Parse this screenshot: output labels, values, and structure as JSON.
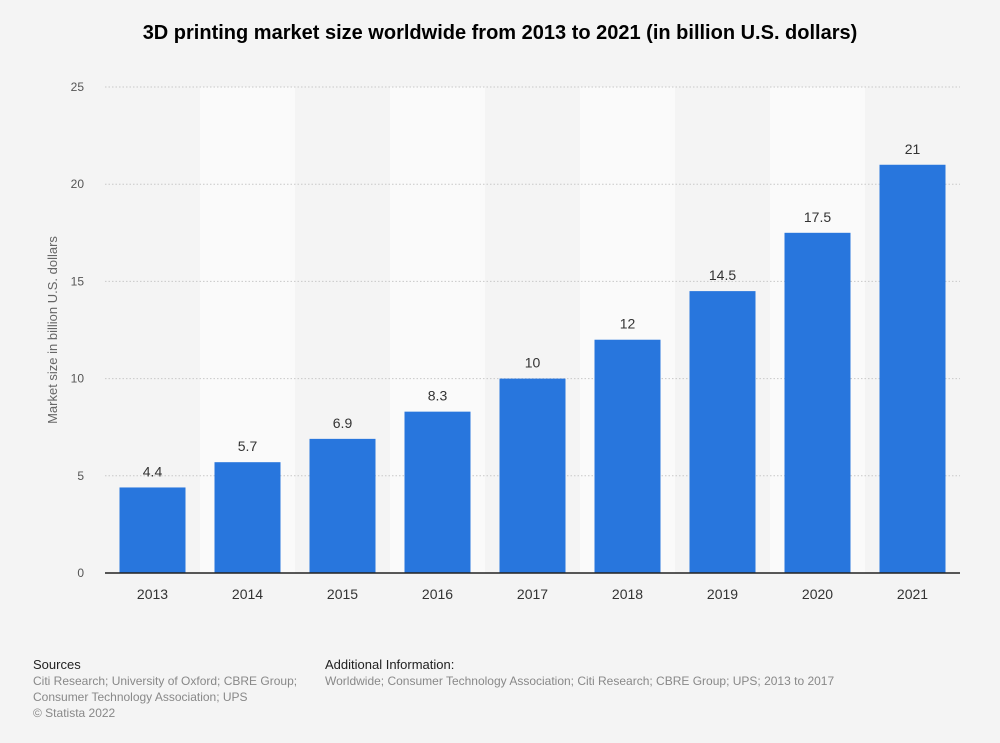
{
  "chart_data": {
    "type": "bar",
    "title": "3D printing market size worldwide from 2013 to 2021 (in billion U.S. dollars)",
    "ylabel": "Market size in billion U.S. dollars",
    "xlabel": "",
    "categories": [
      "2013",
      "2014",
      "2015",
      "2016",
      "2017",
      "2018",
      "2019",
      "2020",
      "2021"
    ],
    "values": [
      4.4,
      5.7,
      6.9,
      8.3,
      10,
      12,
      14.5,
      17.5,
      21
    ],
    "value_labels": [
      "4.4",
      "5.7",
      "6.9",
      "8.3",
      "10",
      "12",
      "14.5",
      "17.5",
      "21"
    ],
    "ylim": [
      0,
      25
    ],
    "yticks": [
      0,
      5,
      10,
      15,
      20,
      25
    ],
    "grid": true,
    "bar_color": "#2876dd"
  },
  "footer": {
    "sources_title": "Sources",
    "sources_lines": [
      "Citi Research; University of Oxford; CBRE Group;",
      "Consumer Technology Association; UPS",
      "© Statista 2022"
    ],
    "additional_title": "Additional Information:",
    "additional_text": "Worldwide; Consumer Technology Association; Citi Research; CBRE Group; UPS; 2013 to 2017"
  }
}
